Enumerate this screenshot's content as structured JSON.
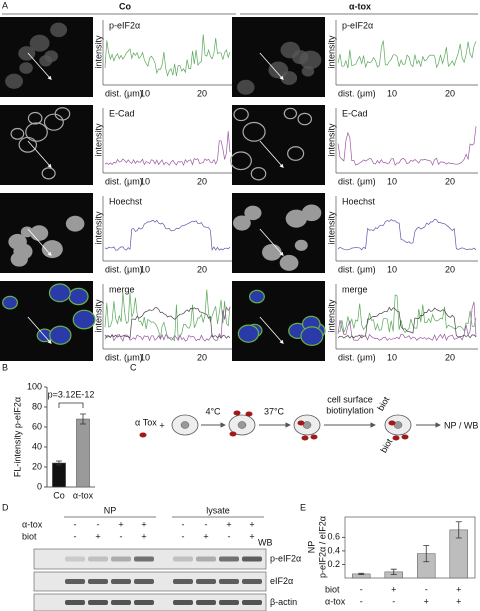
{
  "panel_labels": [
    "A",
    "B",
    "C",
    "D",
    "E"
  ],
  "panel_a": {
    "conditions": [
      "Co",
      "α-tox"
    ],
    "rows": [
      "p-eIF2α",
      "E-Cad",
      "Hoechst",
      "merge"
    ],
    "y_label": "intensity",
    "x_label": "dist. (μm)",
    "x_ticks": [
      "10",
      "20"
    ]
  },
  "chart_data": [
    {
      "type": "bar",
      "y_label": "FL-intensity p-eIF2α",
      "annotation": "p=3.12E-12",
      "categories": [
        "Co",
        "α-tox"
      ],
      "values": [
        24,
        68
      ],
      "errors": [
        2,
        5
      ],
      "colors": [
        "#111111",
        "#9a9a9a"
      ],
      "ylim": [
        0,
        100
      ],
      "yticks": [
        0,
        20,
        40,
        60,
        80,
        100
      ]
    },
    {
      "type": "bar",
      "y_label": [
        "NP",
        "p-eIF2α / eIF2α"
      ],
      "categories": [
        null,
        null,
        null,
        null
      ],
      "values": [
        0.06,
        0.09,
        0.36,
        0.71
      ],
      "errors": [
        0.01,
        0.04,
        0.12,
        0.12
      ],
      "colors": [
        "#bdbdbd",
        "#bdbdbd",
        "#bdbdbd",
        "#bdbdbd"
      ],
      "ylim": [
        0,
        0.9
      ],
      "yticks": [
        0.2,
        0.4,
        0.6
      ],
      "treatment_rows": [
        {
          "label": "biot",
          "marks": [
            "-",
            "+",
            "-",
            "+"
          ]
        },
        {
          "label": "α-tox",
          "marks": [
            "-",
            "-",
            "+",
            "+"
          ]
        }
      ]
    }
  ],
  "panel_c": {
    "toxin": "α Tox",
    "plus": "+",
    "step1": "4°C",
    "step2": "37°C",
    "step3": [
      "cell surface",
      "biotinylation"
    ],
    "biot": [
      "biot",
      "biot"
    ],
    "result": "NP / WB"
  },
  "panel_d": {
    "groups": [
      "NP",
      "lysate"
    ],
    "treatment_rows": [
      {
        "label": "α-tox",
        "marks": [
          "-",
          "-",
          "+",
          "+",
          "-",
          "-",
          "+",
          "+"
        ]
      },
      {
        "label": "biot",
        "marks": [
          "-",
          "+",
          "-",
          "+",
          "-",
          "+",
          "-",
          "+"
        ]
      }
    ],
    "wb": "WB",
    "blots": [
      "p-eIF2α",
      "eIF2α",
      "β-actin"
    ]
  }
}
